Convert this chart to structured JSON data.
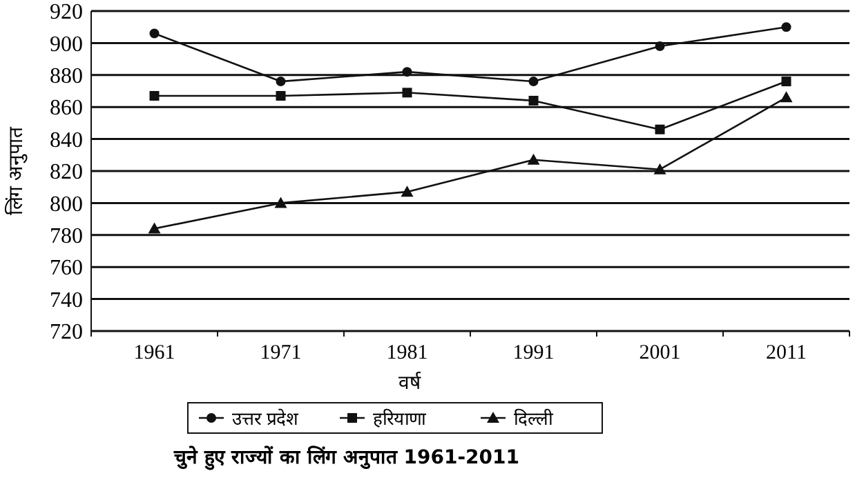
{
  "chart_data": {
    "type": "line",
    "title": "चुने हुए राज्यों का लिंग अनुपात 1961-2011",
    "xlabel": "वर्ष",
    "ylabel": "लिंग अनुपात",
    "categories": [
      "1961",
      "1971",
      "1981",
      "1991",
      "2001",
      "2011"
    ],
    "series": [
      {
        "name": "उत्तर प्रदेश",
        "color": "#111111",
        "marker": "circle",
        "values": [
          906,
          876,
          882,
          876,
          898,
          910
        ]
      },
      {
        "name": "हरियाणा",
        "color": "#111111",
        "marker": "square",
        "values": [
          867,
          867,
          869,
          864,
          846,
          876
        ]
      },
      {
        "name": "दिल्ली",
        "color": "#111111",
        "marker": "triangle",
        "values": [
          784,
          800,
          807,
          827,
          821,
          866
        ]
      }
    ],
    "ylim": [
      720,
      920
    ],
    "yticks": [
      720,
      740,
      760,
      780,
      800,
      820,
      840,
      860,
      880,
      900,
      920
    ],
    "grid": "y",
    "legend": "bottom",
    "line_style": "solid"
  }
}
